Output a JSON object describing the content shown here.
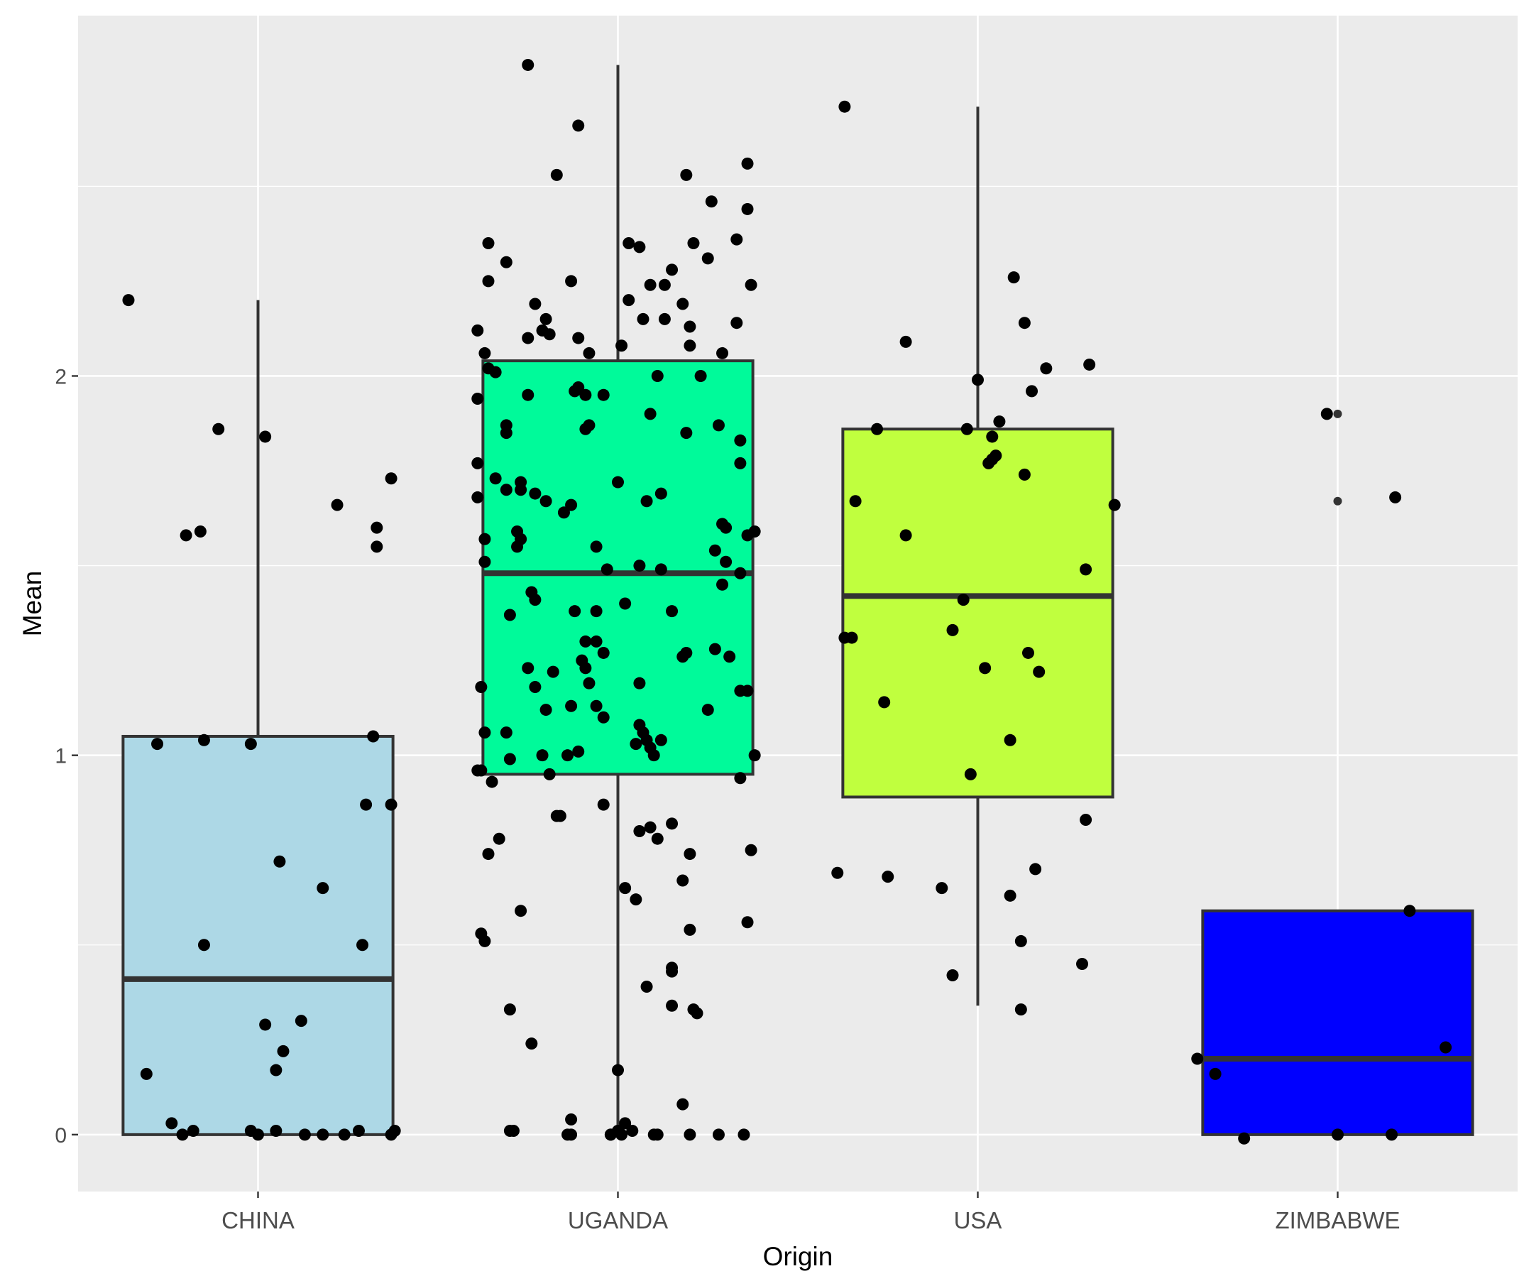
{
  "chart_data": {
    "type": "boxplot",
    "title": "",
    "xlabel": "Origin",
    "ylabel": "Mean",
    "categories": [
      "CHINA",
      "UGANDA",
      "USA",
      "ZIMBABWE"
    ],
    "y_ticks": [
      0,
      1,
      2
    ],
    "y_tick_labels": [
      "0",
      "1",
      "2"
    ],
    "ylim": [
      -0.15,
      2.95
    ],
    "grid": true,
    "legend": "none",
    "background": "#ebebeb",
    "gridline_color": "#ffffff",
    "box_stroke": "#333333",
    "point_color": "#000000",
    "series": [
      {
        "category": "CHINA",
        "fill": "#add8e6",
        "whisker_low": 0.0,
        "q1": 0.0,
        "median": 0.41,
        "q3": 1.05,
        "whisker_high": 2.2,
        "outliers": [],
        "points": [
          [
            -0.36,
            2.2
          ],
          [
            -0.11,
            1.86
          ],
          [
            0.02,
            1.84
          ],
          [
            0.37,
            1.73
          ],
          [
            0.22,
            1.66
          ],
          [
            0.33,
            1.6
          ],
          [
            -0.2,
            1.58
          ],
          [
            -0.16,
            1.59
          ],
          [
            0.33,
            1.55
          ],
          [
            -0.28,
            1.03
          ],
          [
            -0.15,
            1.04
          ],
          [
            -0.02,
            1.03
          ],
          [
            0.32,
            1.05
          ],
          [
            0.3,
            0.87
          ],
          [
            0.37,
            0.87
          ],
          [
            0.06,
            0.72
          ],
          [
            0.18,
            0.65
          ],
          [
            -0.15,
            0.5
          ],
          [
            0.29,
            0.5
          ],
          [
            0.12,
            0.3
          ],
          [
            0.02,
            0.29
          ],
          [
            0.07,
            0.22
          ],
          [
            0.05,
            0.17
          ],
          [
            -0.31,
            0.16
          ],
          [
            -0.24,
            0.03
          ],
          [
            -0.21,
            0.0
          ],
          [
            -0.18,
            0.01
          ],
          [
            -0.02,
            0.01
          ],
          [
            0.0,
            0.0
          ],
          [
            0.05,
            0.01
          ],
          [
            0.13,
            0.0
          ],
          [
            0.18,
            0.0
          ],
          [
            0.24,
            0.0
          ],
          [
            0.28,
            0.01
          ],
          [
            0.37,
            0.0
          ],
          [
            0.38,
            0.01
          ]
        ]
      },
      {
        "category": "UGANDA",
        "fill": "#00fa9a",
        "whisker_low": 0.0,
        "q1": 0.95,
        "median": 1.48,
        "q3": 2.04,
        "whisker_high": 2.82,
        "outliers": [],
        "points": [
          [
            -0.25,
            2.82
          ],
          [
            -0.11,
            2.66
          ],
          [
            -0.17,
            2.53
          ],
          [
            0.19,
            2.53
          ],
          [
            0.36,
            2.56
          ],
          [
            0.26,
            2.46
          ],
          [
            0.36,
            2.44
          ],
          [
            -0.36,
            2.35
          ],
          [
            0.03,
            2.35
          ],
          [
            0.06,
            2.34
          ],
          [
            0.21,
            2.35
          ],
          [
            0.33,
            2.36
          ],
          [
            -0.31,
            2.3
          ],
          [
            0.25,
            2.31
          ],
          [
            0.15,
            2.28
          ],
          [
            0.09,
            2.24
          ],
          [
            -0.13,
            2.25
          ],
          [
            -0.36,
            2.25
          ],
          [
            0.37,
            2.24
          ],
          [
            0.13,
            2.24
          ],
          [
            0.03,
            2.2
          ],
          [
            0.18,
            2.19
          ],
          [
            -0.23,
            2.19
          ],
          [
            -0.2,
            2.15
          ],
          [
            -0.21,
            2.12
          ],
          [
            0.13,
            2.15
          ],
          [
            0.07,
            2.15
          ],
          [
            0.2,
            2.13
          ],
          [
            0.33,
            2.14
          ],
          [
            -0.39,
            2.12
          ],
          [
            -0.25,
            2.1
          ],
          [
            -0.11,
            2.1
          ],
          [
            -0.19,
            2.11
          ],
          [
            0.01,
            2.08
          ],
          [
            0.2,
            2.08
          ],
          [
            0.29,
            2.06
          ],
          [
            -0.08,
            2.06
          ],
          [
            -0.37,
            2.06
          ],
          [
            -0.36,
            2.02
          ],
          [
            -0.34,
            2.01
          ],
          [
            -0.12,
            1.96
          ],
          [
            -0.09,
            1.95
          ],
          [
            0.11,
            2.0
          ],
          [
            0.23,
            2.0
          ],
          [
            -0.25,
            1.95
          ],
          [
            -0.39,
            1.94
          ],
          [
            -0.11,
            1.97
          ],
          [
            -0.04,
            1.95
          ],
          [
            -0.31,
            1.87
          ],
          [
            -0.31,
            1.85
          ],
          [
            -0.08,
            1.87
          ],
          [
            -0.09,
            1.86
          ],
          [
            0.09,
            1.9
          ],
          [
            0.19,
            1.85
          ],
          [
            0.28,
            1.87
          ],
          [
            0.34,
            1.83
          ],
          [
            -0.39,
            1.77
          ],
          [
            0.34,
            1.77
          ],
          [
            -0.34,
            1.73
          ],
          [
            -0.27,
            1.72
          ],
          [
            -0.27,
            1.7
          ],
          [
            -0.31,
            1.7
          ],
          [
            -0.23,
            1.69
          ],
          [
            0.0,
            1.72
          ],
          [
            0.12,
            1.69
          ],
          [
            0.08,
            1.67
          ],
          [
            -0.39,
            1.68
          ],
          [
            -0.13,
            1.66
          ],
          [
            -0.15,
            1.64
          ],
          [
            -0.2,
            1.67
          ],
          [
            0.29,
            1.61
          ],
          [
            0.3,
            1.6
          ],
          [
            0.38,
            1.59
          ],
          [
            0.36,
            1.58
          ],
          [
            -0.37,
            1.57
          ],
          [
            -0.28,
            1.59
          ],
          [
            -0.27,
            1.57
          ],
          [
            -0.28,
            1.55
          ],
          [
            -0.06,
            1.55
          ],
          [
            0.06,
            1.5
          ],
          [
            0.12,
            1.49
          ],
          [
            -0.03,
            1.49
          ],
          [
            -0.37,
            1.51
          ],
          [
            0.27,
            1.54
          ],
          [
            0.3,
            1.51
          ],
          [
            0.29,
            1.45
          ],
          [
            0.34,
            1.48
          ],
          [
            -0.24,
            1.43
          ],
          [
            -0.23,
            1.41
          ],
          [
            -0.12,
            1.38
          ],
          [
            -0.06,
            1.38
          ],
          [
            0.02,
            1.4
          ],
          [
            0.15,
            1.38
          ],
          [
            -0.3,
            1.37
          ],
          [
            -0.06,
            1.3
          ],
          [
            -0.09,
            1.3
          ],
          [
            0.18,
            1.26
          ],
          [
            0.19,
            1.27
          ],
          [
            0.27,
            1.28
          ],
          [
            0.31,
            1.26
          ],
          [
            -0.25,
            1.23
          ],
          [
            -0.18,
            1.22
          ],
          [
            -0.09,
            1.23
          ],
          [
            -0.1,
            1.25
          ],
          [
            -0.04,
            1.27
          ],
          [
            -0.23,
            1.18
          ],
          [
            -0.08,
            1.19
          ],
          [
            0.06,
            1.19
          ],
          [
            0.36,
            1.17
          ],
          [
            0.34,
            1.17
          ],
          [
            -0.38,
            1.18
          ],
          [
            -0.2,
            1.12
          ],
          [
            -0.13,
            1.13
          ],
          [
            -0.06,
            1.13
          ],
          [
            0.25,
            1.12
          ],
          [
            -0.04,
            1.1
          ],
          [
            0.06,
            1.08
          ],
          [
            0.07,
            1.06
          ],
          [
            0.08,
            1.04
          ],
          [
            0.12,
            1.04
          ],
          [
            -0.31,
            1.06
          ],
          [
            -0.37,
            1.06
          ],
          [
            0.05,
            1.03
          ],
          [
            0.09,
            1.02
          ],
          [
            0.1,
            1.0
          ],
          [
            0.38,
            1.0
          ],
          [
            -0.21,
            1.0
          ],
          [
            -0.14,
            1.0
          ],
          [
            -0.3,
            0.99
          ],
          [
            -0.38,
            0.96
          ],
          [
            -0.39,
            0.96
          ],
          [
            -0.11,
            1.01
          ],
          [
            -0.19,
            0.95
          ],
          [
            0.34,
            0.94
          ],
          [
            -0.35,
            0.93
          ],
          [
            -0.16,
            0.84
          ],
          [
            -0.17,
            0.84
          ],
          [
            -0.04,
            0.87
          ],
          [
            0.06,
            0.8
          ],
          [
            0.11,
            0.78
          ],
          [
            0.09,
            0.81
          ],
          [
            0.15,
            0.82
          ],
          [
            0.2,
            0.74
          ],
          [
            0.37,
            0.75
          ],
          [
            -0.33,
            0.78
          ],
          [
            -0.36,
            0.74
          ],
          [
            0.18,
            0.67
          ],
          [
            0.02,
            0.65
          ],
          [
            0.05,
            0.62
          ],
          [
            -0.27,
            0.59
          ],
          [
            0.36,
            0.56
          ],
          [
            0.2,
            0.54
          ],
          [
            -0.38,
            0.53
          ],
          [
            -0.37,
            0.51
          ],
          [
            0.15,
            0.44
          ],
          [
            0.15,
            0.43
          ],
          [
            0.08,
            0.39
          ],
          [
            0.15,
            0.34
          ],
          [
            0.21,
            0.33
          ],
          [
            0.22,
            0.32
          ],
          [
            -0.3,
            0.33
          ],
          [
            -0.24,
            0.24
          ],
          [
            0.0,
            0.17
          ],
          [
            0.18,
            0.08
          ],
          [
            -0.13,
            0.04
          ],
          [
            0.02,
            0.03
          ],
          [
            0.0,
            0.01
          ],
          [
            -0.02,
            0.0
          ],
          [
            0.01,
            0.0
          ],
          [
            0.04,
            0.01
          ],
          [
            -0.3,
            0.01
          ],
          [
            -0.29,
            0.01
          ],
          [
            -0.14,
            0.0
          ],
          [
            -0.13,
            0.0
          ],
          [
            -0.02,
            0.0
          ],
          [
            0.1,
            0.0
          ],
          [
            0.11,
            0.0
          ],
          [
            0.2,
            0.0
          ],
          [
            0.28,
            0.0
          ],
          [
            0.35,
            0.0
          ]
        ]
      },
      {
        "category": "USA",
        "fill": "#c0ff3e",
        "whisker_low": 0.34,
        "q1": 0.89,
        "median": 1.42,
        "q3": 1.86,
        "whisker_high": 2.71,
        "outliers": [],
        "points": [
          [
            -0.37,
            2.71
          ],
          [
            0.1,
            2.26
          ],
          [
            0.13,
            2.14
          ],
          [
            -0.2,
            2.09
          ],
          [
            0.19,
            2.02
          ],
          [
            0.31,
            2.03
          ],
          [
            0.15,
            1.96
          ],
          [
            0.0,
            1.99
          ],
          [
            -0.28,
            1.86
          ],
          [
            -0.03,
            1.86
          ],
          [
            0.04,
            1.84
          ],
          [
            0.06,
            1.88
          ],
          [
            0.03,
            1.77
          ],
          [
            0.04,
            1.78
          ],
          [
            0.05,
            1.79
          ],
          [
            0.13,
            1.74
          ],
          [
            -0.34,
            1.67
          ],
          [
            0.38,
            1.66
          ],
          [
            -0.2,
            1.58
          ],
          [
            0.3,
            1.49
          ],
          [
            -0.04,
            1.41
          ],
          [
            -0.07,
            1.33
          ],
          [
            -0.37,
            1.31
          ],
          [
            -0.35,
            1.31
          ],
          [
            0.14,
            1.27
          ],
          [
            0.02,
            1.23
          ],
          [
            0.17,
            1.22
          ],
          [
            -0.26,
            1.14
          ],
          [
            0.09,
            1.04
          ],
          [
            -0.02,
            0.95
          ],
          [
            0.3,
            0.83
          ],
          [
            -0.39,
            0.69
          ],
          [
            -0.25,
            0.68
          ],
          [
            -0.1,
            0.65
          ],
          [
            0.16,
            0.7
          ],
          [
            0.09,
            0.63
          ],
          [
            0.12,
            0.51
          ],
          [
            0.29,
            0.45
          ],
          [
            -0.07,
            0.42
          ],
          [
            0.12,
            0.33
          ]
        ]
      },
      {
        "category": "ZIMBABWE",
        "fill": "#0000ff",
        "whisker_low": 0.0,
        "q1": 0.0,
        "median": 0.2,
        "q3": 0.59,
        "whisker_high": 0.59,
        "outliers": [
          1.9,
          1.67
        ],
        "points": [
          [
            -0.03,
            1.9
          ],
          [
            0.16,
            1.68
          ],
          [
            0.2,
            0.59
          ],
          [
            -0.39,
            0.2
          ],
          [
            -0.34,
            0.16
          ],
          [
            0.3,
            0.23
          ],
          [
            -0.26,
            -0.01
          ],
          [
            0.0,
            0.0
          ],
          [
            0.15,
            0.0
          ]
        ]
      }
    ]
  }
}
